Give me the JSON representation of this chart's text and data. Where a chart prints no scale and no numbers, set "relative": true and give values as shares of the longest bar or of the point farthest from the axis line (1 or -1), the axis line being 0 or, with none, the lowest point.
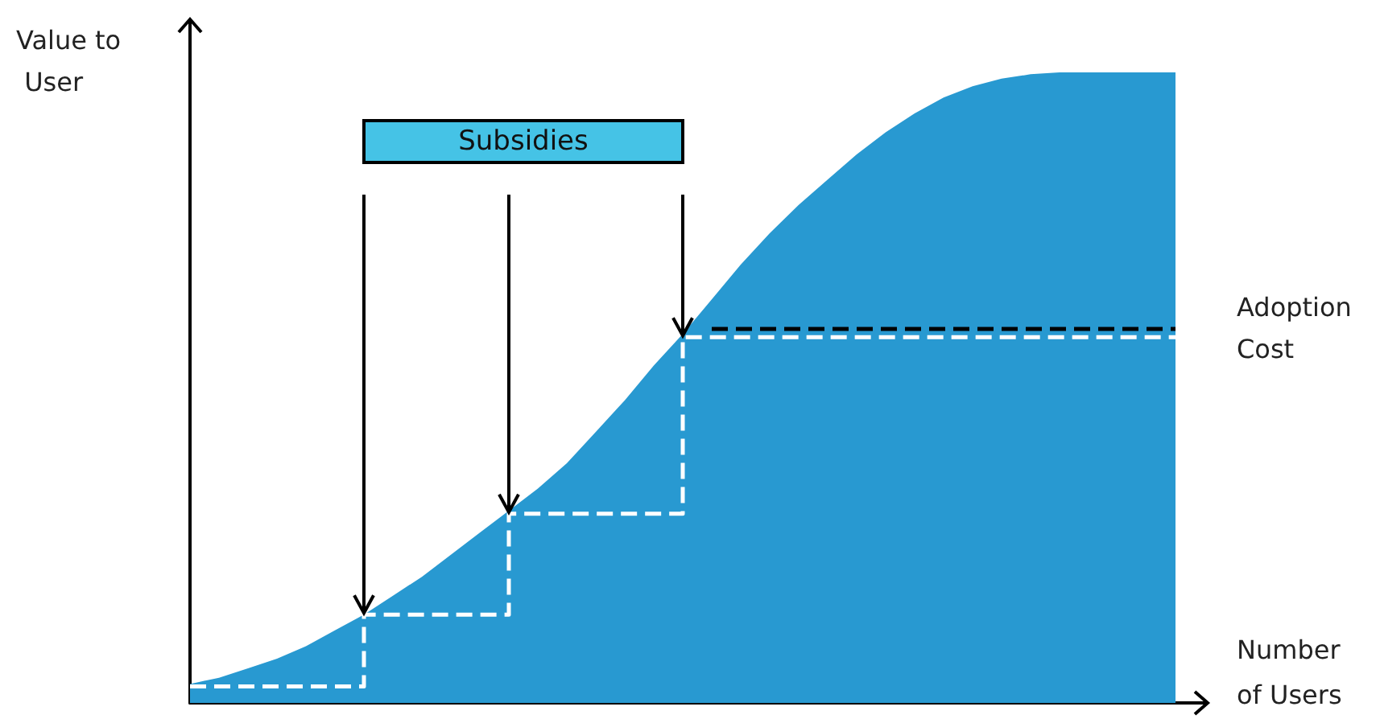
{
  "chart_data": {
    "type": "area",
    "relative": true,
    "xlabel": "Number of Users",
    "ylabel": "Value to User",
    "categories": [
      null,
      null,
      null,
      null,
      null,
      null,
      null,
      null,
      null,
      null,
      null,
      null,
      null,
      null,
      null,
      null,
      null,
      null,
      null,
      null,
      null,
      null,
      null,
      null,
      null,
      null,
      null,
      null,
      null,
      null,
      null,
      null,
      null,
      null,
      null
    ],
    "series": [
      {
        "color": "#2899d1",
        "values": [
          0.03,
          0.04,
          0.055,
          0.07,
          0.09,
          0.115,
          0.14,
          0.17,
          0.2,
          0.235,
          0.27,
          0.305,
          0.34,
          0.38,
          0.43,
          0.48,
          0.535,
          0.585,
          0.64,
          0.695,
          0.745,
          0.79,
          0.83,
          0.87,
          0.905,
          0.935,
          0.96,
          0.978,
          0.99,
          0.997,
          1,
          1,
          1,
          1,
          1
        ]
      },
      {
        "type": "step",
        "color": "#ffffff",
        "line_style": "dashed",
        "values": [
          0.026,
          0.026,
          0.026,
          0.026,
          0.026,
          0.026,
          0.14,
          0.14,
          0.14,
          0.14,
          0.14,
          0.3,
          0.3,
          0.3,
          0.3,
          0.3,
          0.3,
          0.58,
          0.58,
          0.58,
          0.58,
          0.58,
          0.58,
          0.58,
          0.58,
          0.58,
          0.58,
          0.58,
          0.58,
          0.58,
          0.58,
          0.58,
          0.58,
          0.58,
          0.58
        ]
      }
    ],
    "ref_lines": [
      {
        "axis": "y",
        "value": 0.594,
        "label": "Adoption Cost",
        "color": "#000000",
        "line_style": "dashed"
      }
    ],
    "annotations": [
      "Subsidies"
    ],
    "grid": false,
    "marker": "none"
  }
}
